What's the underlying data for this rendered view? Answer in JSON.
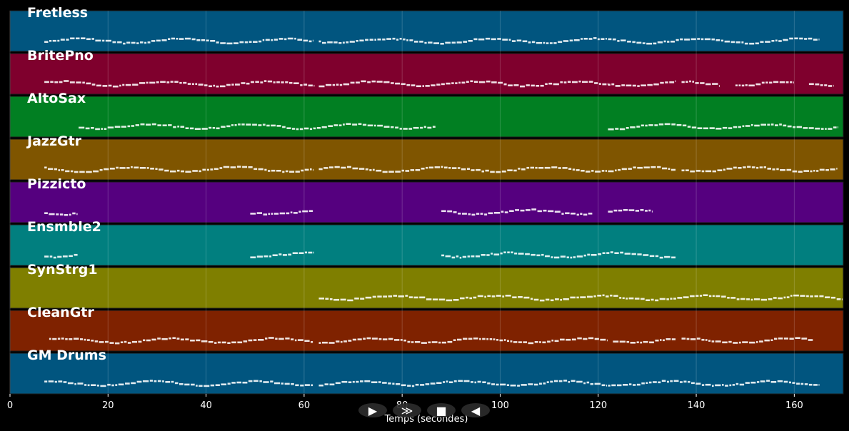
{
  "chart_data": {
    "type": "piano-roll",
    "title": "",
    "xlabel": "Temps (secondes)",
    "ylabel": "",
    "xlim": [
      0,
      170
    ],
    "x_ticks": [
      "0",
      "20",
      "40",
      "60",
      "80",
      "100",
      "120",
      "140",
      "160"
    ],
    "x_tick_values": [
      0,
      20,
      40,
      60,
      80,
      100,
      120,
      140,
      160
    ],
    "grid": true,
    "tracks": [
      {
        "name": "Fretless",
        "color": "#01557f",
        "segments": [
          [
            7,
            62
          ],
          [
            63,
            122
          ],
          [
            122,
            165
          ]
        ]
      },
      {
        "name": "BritePno",
        "color": "#7f002d",
        "segments": [
          [
            7,
            62
          ],
          [
            63,
            122
          ],
          [
            122,
            136
          ],
          [
            137,
            145
          ],
          [
            148,
            160
          ],
          [
            163,
            168
          ]
        ]
      },
      {
        "name": "AltoSax",
        "color": "#017f22",
        "segments": [
          [
            14,
            62
          ],
          [
            62,
            87
          ],
          [
            122,
            136
          ],
          [
            136,
            169
          ]
        ]
      },
      {
        "name": "JazzGtr",
        "color": "#7f5500",
        "segments": [
          [
            7,
            62
          ],
          [
            63,
            122
          ],
          [
            122,
            136
          ],
          [
            137,
            169
          ]
        ]
      },
      {
        "name": "Pizzicto",
        "color": "#55007f",
        "segments": [
          [
            7,
            14
          ],
          [
            49,
            62
          ],
          [
            88,
            119
          ],
          [
            122,
            131
          ]
        ]
      },
      {
        "name": "Ensmble2",
        "color": "#017f7f",
        "segments": [
          [
            7,
            14
          ],
          [
            49,
            62
          ],
          [
            88,
            136
          ]
        ]
      },
      {
        "name": "SynStrg1",
        "color": "#7f7f00",
        "segments": [
          [
            63,
            170
          ]
        ]
      },
      {
        "name": "CleanGtr",
        "color": "#7f2200",
        "segments": [
          [
            8,
            62
          ],
          [
            63,
            122
          ],
          [
            123,
            136
          ],
          [
            137,
            164
          ]
        ]
      },
      {
        "name": "GM Drums",
        "color": "#01557f",
        "segments": [
          [
            7,
            62
          ],
          [
            63,
            122
          ],
          [
            122,
            165
          ]
        ]
      }
    ]
  },
  "controls": {
    "buttons": [
      {
        "name": "play-icon",
        "glyph": "▶"
      },
      {
        "name": "fast-forward-icon",
        "glyph": "≫"
      },
      {
        "name": "stop-icon",
        "glyph": "■"
      },
      {
        "name": "rewind-icon",
        "glyph": "◀"
      }
    ],
    "bg_color": "#2b2b2b"
  }
}
